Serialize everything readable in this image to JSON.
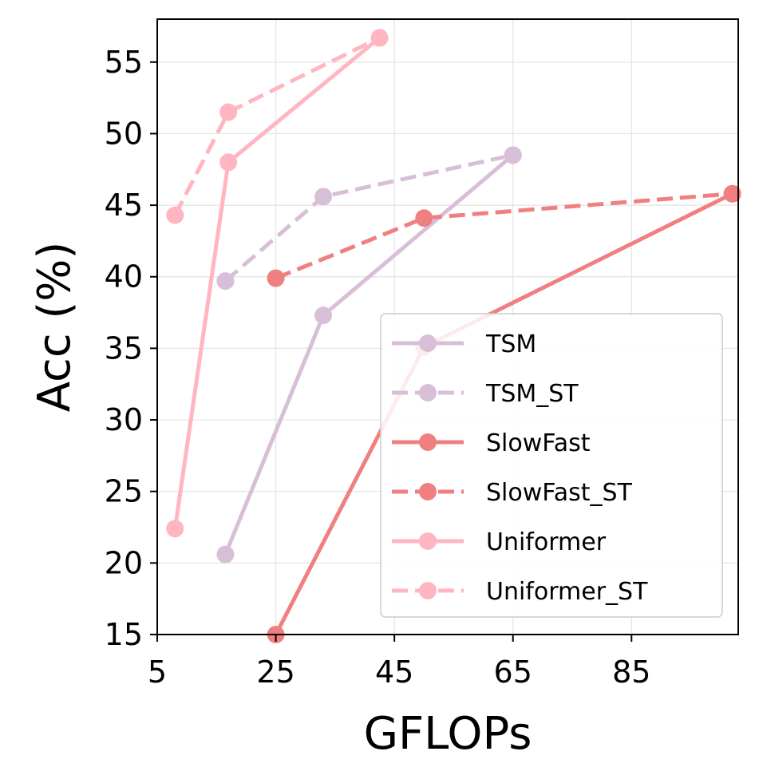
{
  "chart_data": {
    "type": "line",
    "title": "",
    "xlabel": "GFLOPs",
    "ylabel": "Acc (%)",
    "xlim": [
      5,
      103
    ],
    "ylim": [
      15,
      58
    ],
    "xticks": [
      5,
      25,
      45,
      65,
      85
    ],
    "yticks": [
      15,
      20,
      25,
      30,
      35,
      40,
      45,
      50,
      55
    ],
    "grid": true,
    "legend_position": "lower-right",
    "series": [
      {
        "name": "TSM",
        "color": "#d8bfd8",
        "style": "solid",
        "x": [
          16.5,
          33,
          65
        ],
        "y": [
          20.6,
          37.3,
          48.5
        ]
      },
      {
        "name": "TSM_ST",
        "color": "#d8bfd8",
        "style": "dashed",
        "x": [
          16.5,
          33,
          65
        ],
        "y": [
          39.7,
          45.6,
          48.5
        ]
      },
      {
        "name": "SlowFast",
        "color": "#f08080",
        "style": "solid",
        "x": [
          25,
          50,
          102
        ],
        "y": [
          15.0,
          35.1,
          45.8
        ]
      },
      {
        "name": "SlowFast_ST",
        "color": "#f08080",
        "style": "dashed",
        "x": [
          25,
          50,
          102
        ],
        "y": [
          39.9,
          44.1,
          45.8
        ]
      },
      {
        "name": "Uniformer",
        "color": "#ffb6c1",
        "style": "solid",
        "x": [
          8,
          17,
          42.5
        ],
        "y": [
          22.4,
          48.0,
          56.7
        ]
      },
      {
        "name": "Uniformer_ST",
        "color": "#ffb6c1",
        "style": "dashed",
        "x": [
          8,
          17,
          42.5
        ],
        "y": [
          44.3,
          51.5,
          56.7
        ]
      }
    ]
  }
}
